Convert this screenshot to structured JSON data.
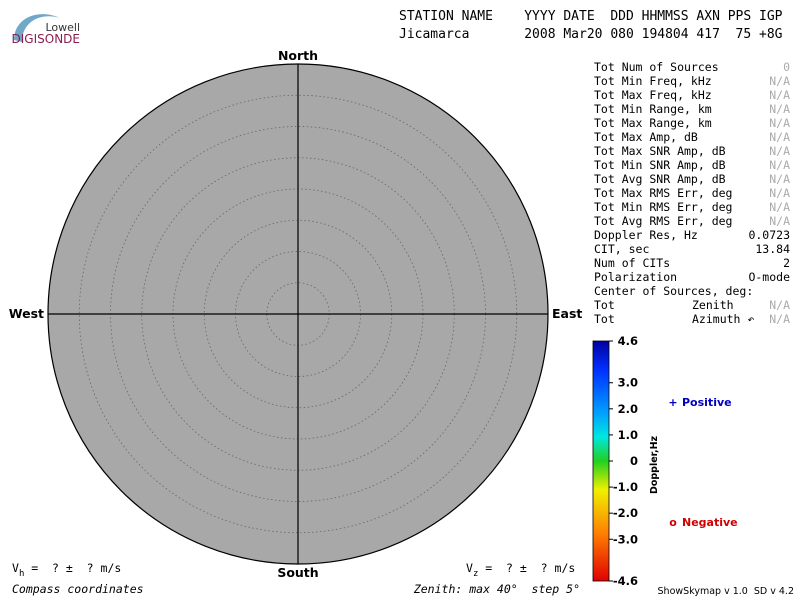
{
  "header": {
    "logo_top": "Lowell",
    "logo_bottom": "DIGISONDE",
    "columns_line": "STATION NAME    YYYY DATE  DDD HHMMSS AXN PPS IGP",
    "values_line": "Jicamarca       2008 Mar20 080 194804 417  75 +8G"
  },
  "chart_data": {
    "type": "polar",
    "directions": {
      "north": "North",
      "south": "South",
      "east": "East",
      "west": "West"
    },
    "rlim": [
      0,
      40
    ],
    "rticks": [
      5,
      10,
      15,
      20,
      25,
      30,
      35,
      40
    ],
    "plot_color": "#a8a8a8",
    "colorbar": {
      "label": "Doppler,Hz",
      "ylim": [
        -4.6,
        4.6
      ],
      "yticks": [
        4.6,
        {
          "value": 3,
          "label": "3.0"
        },
        {
          "value": 2,
          "label": "2.0"
        },
        {
          "value": 1,
          "label": "1.0"
        },
        0,
        {
          "value": -1,
          "label": "-1.0"
        },
        {
          "value": -2,
          "label": "-2.0"
        },
        {
          "value": -3,
          "label": "-3.0"
        },
        -4.6
      ]
    },
    "legend": [
      {
        "marker": "+",
        "name": "Positive",
        "color": "#0000c0"
      },
      {
        "marker": "o",
        "name": "Negative",
        "color": "#d00000"
      }
    ]
  },
  "stats": {
    "rows": [
      [
        "Tot Num of Sources",
        0
      ],
      [
        "Tot Min Freq, kHz",
        "N/A"
      ],
      [
        "Tot Max Freq, kHz",
        "N/A"
      ],
      [
        "Tot Min Range, km",
        "N/A"
      ],
      [
        "Tot Max Range, km",
        "N/A"
      ],
      [
        "Tot Max Amp, dB",
        "N/A"
      ],
      [
        "Tot Max SNR Amp, dB",
        "N/A"
      ],
      [
        "Tot Min SNR Amp, dB",
        "N/A"
      ],
      [
        "Tot Avg SNR Amp, dB",
        "N/A"
      ],
      [
        "Tot Max RMS Err, deg",
        "N/A"
      ],
      [
        "Tot Min RMS Err, deg",
        "N/A"
      ],
      [
        "Tot Avg RMS Err, deg",
        "N/A"
      ],
      [
        "Doppler Res, Hz",
        0.0723
      ],
      [
        "CIT, sec",
        13.84
      ],
      [
        "Num of CITs",
        2
      ],
      [
        "Polarization",
        "O-mode"
      ],
      [
        "Center of Sources, deg:"
      ],
      [
        "Tot",
        "Zenith",
        "N/A"
      ],
      [
        "Tot",
        "Azimuth ↶",
        "N/A"
      ]
    ]
  },
  "footer": {
    "vh": {
      "symbol": "V",
      "sub": "h",
      "text": " =  ? ±  ? m/s"
    },
    "vz": {
      "symbol": "V",
      "sub": "z",
      "text": " =  ? ±  ? m/s"
    },
    "coords": "Compass coordinates",
    "zenith": "Zenith: max 40°  step 5°",
    "version": "ShowSkymap v 1.0  SD v 4.2"
  }
}
